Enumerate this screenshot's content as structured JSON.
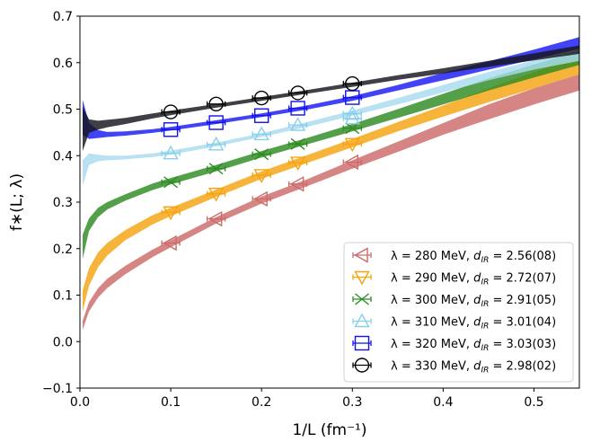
{
  "chart_data": {
    "type": "scatter",
    "xlabel": "1/L (fm⁻¹)",
    "ylabel": "f∗(L; λ)",
    "xlim": [
      0.0,
      0.55
    ],
    "ylim": [
      -0.1,
      0.7
    ],
    "xticks": [
      "0.0",
      "0.1",
      "0.2",
      "0.3",
      "0.4",
      "0.5"
    ],
    "yticks": [
      "−0.1",
      "0.0",
      "0.1",
      "0.2",
      "0.3",
      "0.4",
      "0.5",
      "0.6",
      "0.7"
    ],
    "legend_position": "lower-right",
    "series": [
      {
        "name": "280 MeV",
        "lambda_label": "λ =  280 MeV,",
        "dir_label": "d",
        "dir_sub": "IR",
        "dir_value": " = 2.56(08)",
        "marker": "triangle-left",
        "color": "#cd6a6a",
        "band_color": "#cd6a6a",
        "x": [
          0.1,
          0.15,
          0.2,
          0.24,
          0.3
        ],
        "y": [
          0.212,
          0.264,
          0.307,
          0.339,
          0.386
        ],
        "band_x": [
          0.003,
          0.01,
          0.02,
          0.03,
          0.05,
          0.08,
          0.1,
          0.15,
          0.2,
          0.25,
          0.3,
          0.35,
          0.4,
          0.45,
          0.5,
          0.55
        ],
        "band_lo": [
          0.025,
          0.065,
          0.095,
          0.115,
          0.145,
          0.182,
          0.203,
          0.254,
          0.297,
          0.334,
          0.372,
          0.408,
          0.445,
          0.478,
          0.51,
          0.54
        ],
        "band_hi": [
          0.045,
          0.085,
          0.115,
          0.135,
          0.163,
          0.198,
          0.218,
          0.268,
          0.312,
          0.349,
          0.39,
          0.43,
          0.47,
          0.51,
          0.545,
          0.575
        ]
      },
      {
        "name": "290 MeV",
        "lambda_label": "λ =  290 MeV,",
        "dir_label": "d",
        "dir_sub": "IR",
        "dir_value": " = 2.72(07)",
        "marker": "triangle-down",
        "color": "#f5a30f",
        "band_color": "#f5a30f",
        "x": [
          0.1,
          0.15,
          0.2,
          0.24,
          0.3
        ],
        "y": [
          0.278,
          0.318,
          0.358,
          0.385,
          0.425
        ],
        "band_x": [
          0.003,
          0.01,
          0.02,
          0.03,
          0.05,
          0.08,
          0.1,
          0.15,
          0.2,
          0.25,
          0.3,
          0.35,
          0.4,
          0.45,
          0.5,
          0.55
        ],
        "band_lo": [
          0.065,
          0.12,
          0.16,
          0.185,
          0.218,
          0.252,
          0.27,
          0.311,
          0.35,
          0.384,
          0.418,
          0.452,
          0.484,
          0.515,
          0.545,
          0.575
        ],
        "band_hi": [
          0.11,
          0.158,
          0.192,
          0.212,
          0.24,
          0.272,
          0.288,
          0.327,
          0.366,
          0.401,
          0.436,
          0.472,
          0.508,
          0.545,
          0.58,
          0.612
        ]
      },
      {
        "name": "300 MeV",
        "lambda_label": "λ =  300 MeV,",
        "dir_label": "d",
        "dir_sub": "IR",
        "dir_value": " = 2.91(05)",
        "marker": "x",
        "color": "#2e8b22",
        "band_color": "#2e8b22",
        "x": [
          0.1,
          0.15,
          0.2,
          0.24,
          0.3
        ],
        "y": [
          0.343,
          0.372,
          0.403,
          0.425,
          0.459
        ],
        "band_x": [
          0.003,
          0.01,
          0.02,
          0.03,
          0.05,
          0.08,
          0.1,
          0.15,
          0.2,
          0.25,
          0.3,
          0.35,
          0.4,
          0.45,
          0.5,
          0.55
        ],
        "band_lo": [
          0.178,
          0.238,
          0.268,
          0.284,
          0.303,
          0.326,
          0.338,
          0.366,
          0.396,
          0.424,
          0.452,
          0.481,
          0.51,
          0.54,
          0.568,
          0.595
        ],
        "band_hi": [
          0.23,
          0.265,
          0.288,
          0.3,
          0.317,
          0.34,
          0.352,
          0.38,
          0.41,
          0.438,
          0.468,
          0.5,
          0.533,
          0.566,
          0.596,
          0.624
        ]
      },
      {
        "name": "310 MeV",
        "lambda_label": "λ =  310 MeV,",
        "dir_label": "d",
        "dir_sub": "IR",
        "dir_value": " = 3.01(04)",
        "marker": "triangle-up",
        "color": "#87cfea",
        "band_color": "#a8dcef",
        "x": [
          0.1,
          0.15,
          0.2,
          0.24,
          0.3,
          0.3
        ],
        "y": [
          0.405,
          0.424,
          0.446,
          0.466,
          0.49,
          0.48
        ],
        "band_x": [
          0.003,
          0.01,
          0.02,
          0.03,
          0.05,
          0.08,
          0.1,
          0.15,
          0.2,
          0.25,
          0.3,
          0.35,
          0.4,
          0.45,
          0.5,
          0.55
        ],
        "band_lo": [
          0.335,
          0.38,
          0.388,
          0.39,
          0.392,
          0.397,
          0.402,
          0.42,
          0.44,
          0.462,
          0.486,
          0.51,
          0.536,
          0.562,
          0.585,
          0.604
        ],
        "band_hi": [
          0.39,
          0.405,
          0.402,
          0.4,
          0.4,
          0.405,
          0.411,
          0.428,
          0.448,
          0.472,
          0.497,
          0.524,
          0.552,
          0.58,
          0.605,
          0.626
        ]
      },
      {
        "name": "320 MeV",
        "lambda_label": "λ =  320 MeV,",
        "dir_label": "d",
        "dir_sub": "IR",
        "dir_value": " = 3.03(03)",
        "marker": "square",
        "color": "#1010f0",
        "band_color": "#1818f5",
        "x": [
          0.1,
          0.15,
          0.2,
          0.24,
          0.3
        ],
        "y": [
          0.456,
          0.471,
          0.486,
          0.502,
          0.525
        ],
        "band_x": [
          0.003,
          0.01,
          0.02,
          0.03,
          0.05,
          0.08,
          0.1,
          0.15,
          0.2,
          0.25,
          0.3,
          0.35,
          0.4,
          0.45,
          0.5,
          0.55
        ],
        "band_lo": [
          0.445,
          0.436,
          0.438,
          0.44,
          0.443,
          0.449,
          0.454,
          0.468,
          0.483,
          0.499,
          0.518,
          0.54,
          0.562,
          0.585,
          0.607,
          0.63
        ],
        "band_hi": [
          0.52,
          0.47,
          0.455,
          0.451,
          0.452,
          0.457,
          0.462,
          0.476,
          0.491,
          0.508,
          0.528,
          0.552,
          0.578,
          0.603,
          0.628,
          0.655
        ]
      },
      {
        "name": "330 MeV",
        "lambda_label": "λ =  330 MeV,",
        "dir_label": "d",
        "dir_sub": "IR",
        "dir_value": " = 2.98(02)",
        "marker": "circle",
        "color": "#000000",
        "band_color": "#15151c",
        "x": [
          0.1,
          0.15,
          0.2,
          0.24,
          0.3
        ],
        "y": [
          0.494,
          0.511,
          0.524,
          0.535,
          0.555
        ],
        "band_x": [
          0.003,
          0.01,
          0.02,
          0.03,
          0.05,
          0.08,
          0.1,
          0.15,
          0.2,
          0.25,
          0.3,
          0.35,
          0.4,
          0.45,
          0.5,
          0.55
        ],
        "band_lo": [
          0.41,
          0.449,
          0.456,
          0.461,
          0.468,
          0.48,
          0.487,
          0.503,
          0.518,
          0.533,
          0.548,
          0.563,
          0.577,
          0.591,
          0.605,
          0.619
        ],
        "band_hi": [
          0.505,
          0.478,
          0.475,
          0.477,
          0.481,
          0.491,
          0.497,
          0.511,
          0.526,
          0.541,
          0.557,
          0.573,
          0.588,
          0.604,
          0.62,
          0.637
        ]
      }
    ]
  }
}
